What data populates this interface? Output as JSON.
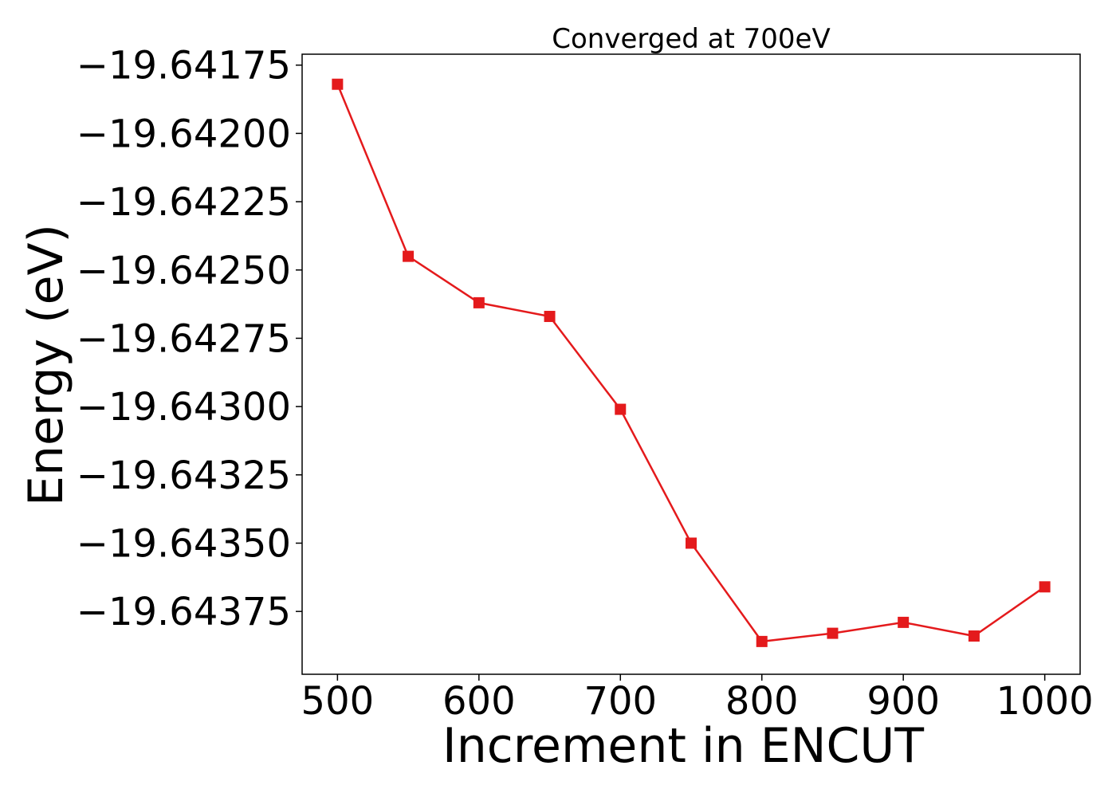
{
  "chart_data": {
    "type": "line",
    "title": "Converged at 700eV",
    "xlabel": "Increment in ENCUT",
    "ylabel": "Energy (eV)",
    "xlim": [
      475,
      1025
    ],
    "ylim": [
      -19.64398,
      -19.64171
    ],
    "xticks": [
      500,
      600,
      700,
      800,
      900,
      1000
    ],
    "yticks": [
      -19.64175,
      -19.642,
      -19.64225,
      -19.6425,
      -19.64275,
      -19.643,
      -19.64325,
      -19.6435,
      -19.64375
    ],
    "ytick_labels": [
      "−19.64175",
      "−19.64200",
      "−19.64225",
      "−19.64250",
      "−19.64275",
      "−19.64300",
      "−19.64325",
      "−19.64350",
      "−19.64375"
    ],
    "grid": false,
    "series": [
      {
        "color": "#e41a1c",
        "marker": "square",
        "x": [
          500,
          550,
          600,
          650,
          700,
          750,
          800,
          850,
          900,
          950,
          1000
        ],
        "y": [
          -19.64182,
          -19.64245,
          -19.64262,
          -19.64267,
          -19.64301,
          -19.6435,
          -19.64386,
          -19.64383,
          -19.64379,
          -19.64384,
          -19.64366
        ]
      }
    ]
  }
}
